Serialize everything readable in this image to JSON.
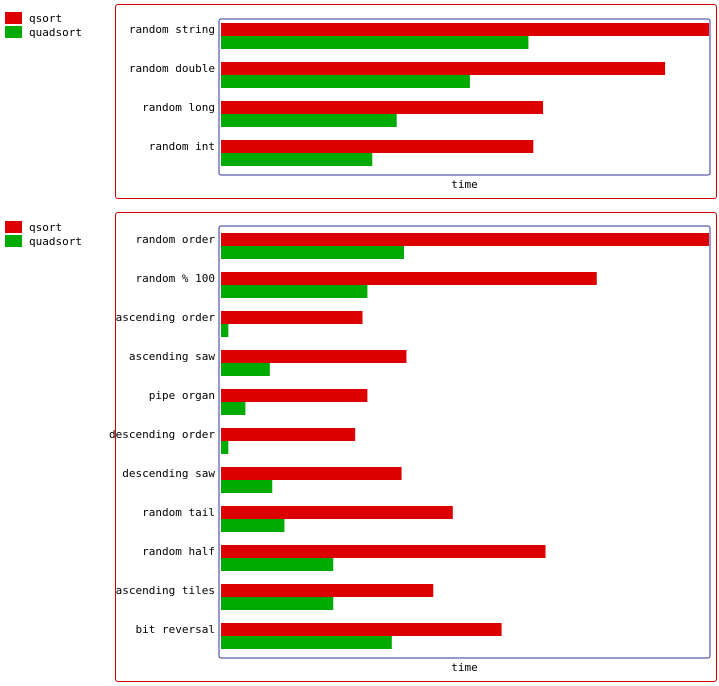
{
  "colors": {
    "qsort": "#dd0000",
    "quadsort": "#00aa00",
    "panel_border": "#cc0000",
    "plot_border": "#333399"
  },
  "chart_data": [
    {
      "type": "bar",
      "orientation": "horizontal",
      "title": "",
      "xlabel": "time",
      "ylabel": "",
      "xlim": [
        0,
        100
      ],
      "grid": false,
      "legend": "top-left",
      "categories": [
        "random string",
        "random double",
        "random long",
        "random int"
      ],
      "series": [
        {
          "name": "qsort",
          "values": [
            100,
            91,
            66,
            64
          ]
        },
        {
          "name": "quadsort",
          "values": [
            63,
            51,
            36,
            31
          ]
        }
      ]
    },
    {
      "type": "bar",
      "orientation": "horizontal",
      "title": "",
      "xlabel": "time",
      "ylabel": "",
      "xlim": [
        0,
        100
      ],
      "grid": false,
      "legend": "top-left",
      "categories": [
        "random order",
        "random % 100",
        "ascending order",
        "ascending saw",
        "pipe organ",
        "descending order",
        "descending saw",
        "random tail",
        "random half",
        "ascending tiles",
        "bit reversal"
      ],
      "series": [
        {
          "name": "qsort",
          "values": [
            100,
            77,
            29,
            38,
            30,
            27.5,
            37,
            47.5,
            66.5,
            43.5,
            57.5
          ]
        },
        {
          "name": "quadsort",
          "values": [
            37.5,
            30,
            1.5,
            10,
            5,
            1.5,
            10.5,
            13,
            23,
            23,
            35
          ]
        }
      ]
    }
  ]
}
